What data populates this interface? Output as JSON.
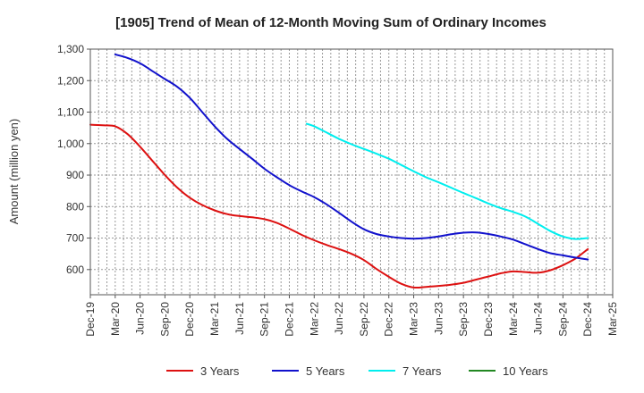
{
  "chart_data": {
    "type": "line",
    "title": "[1905]  Trend of Mean of 12-Month Moving Sum of Ordinary Incomes",
    "xlabel": "",
    "ylabel": "Amount (million yen)",
    "ylim": [
      520,
      1300
    ],
    "yticks": [
      600,
      700,
      800,
      900,
      1000,
      1100,
      1200,
      1300
    ],
    "ytick_labels": [
      "600",
      "700",
      "800",
      "900",
      "1,000",
      "1,100",
      "1,200",
      "1,300"
    ],
    "xlim": [
      0,
      21
    ],
    "x_tick_labels": [
      "Dec-19",
      "Mar-20",
      "Jun-20",
      "Sep-20",
      "Dec-20",
      "Mar-21",
      "Jun-21",
      "Sep-21",
      "Dec-21",
      "Mar-22",
      "Jun-22",
      "Sep-22",
      "Dec-22",
      "Mar-23",
      "Jun-23",
      "Sep-23",
      "Dec-23",
      "Mar-24",
      "Jun-24",
      "Sep-24",
      "Dec-24",
      "Mar-25"
    ],
    "grid": true,
    "legend_position": "bottom",
    "series": [
      {
        "name": "3 Years",
        "color": "#dd1111",
        "x": [
          0,
          0.5,
          1,
          1.5,
          2,
          2.5,
          3,
          3.5,
          4,
          4.5,
          5,
          5.5,
          6,
          6.5,
          7,
          7.5,
          8,
          8.5,
          9,
          9.5,
          10,
          10.5,
          11,
          11.5,
          12,
          12.5,
          13,
          13.5,
          14,
          14.5,
          15,
          15.5,
          16,
          16.5,
          17,
          17.5,
          18,
          18.5,
          19,
          19.5,
          20
        ],
        "values": [
          1060,
          1058,
          1055,
          1030,
          990,
          945,
          900,
          860,
          828,
          805,
          788,
          776,
          770,
          766,
          760,
          748,
          730,
          710,
          693,
          678,
          665,
          650,
          630,
          602,
          577,
          555,
          543,
          545,
          548,
          552,
          558,
          568,
          578,
          588,
          594,
          592,
          590,
          598,
          614,
          635,
          665
        ]
      },
      {
        "name": "5 Years",
        "color": "#1111cc",
        "x": [
          1,
          1.5,
          2,
          2.5,
          3,
          3.5,
          4,
          4.5,
          5,
          5.5,
          6,
          6.5,
          7,
          7.5,
          8,
          8.5,
          9,
          9.5,
          10,
          10.5,
          11,
          11.5,
          12,
          12.5,
          13,
          13.5,
          14,
          14.5,
          15,
          15.5,
          16,
          16.5,
          17,
          17.5,
          18,
          18.5,
          19,
          19.5,
          20
        ],
        "values": [
          1283,
          1272,
          1255,
          1230,
          1205,
          1180,
          1145,
          1100,
          1055,
          1015,
          983,
          952,
          920,
          893,
          868,
          848,
          830,
          807,
          780,
          752,
          728,
          713,
          705,
          700,
          698,
          700,
          705,
          712,
          717,
          718,
          713,
          705,
          695,
          680,
          665,
          652,
          645,
          638,
          632
        ]
      },
      {
        "name": "7 Years",
        "color": "#00eeee",
        "x": [
          8.7,
          9,
          9.5,
          10,
          10.5,
          11,
          11.5,
          12,
          12.5,
          13,
          13.5,
          14,
          14.5,
          15,
          15.5,
          16,
          16.5,
          17,
          17.5,
          18,
          18.5,
          19,
          19.5,
          20
        ],
        "values": [
          1063,
          1055,
          1035,
          1015,
          998,
          983,
          968,
          952,
          932,
          912,
          893,
          877,
          860,
          843,
          827,
          810,
          795,
          783,
          768,
          745,
          722,
          705,
          697,
          700
        ]
      },
      {
        "name": "10 Years",
        "color": "#228822",
        "x": [],
        "values": []
      }
    ]
  }
}
